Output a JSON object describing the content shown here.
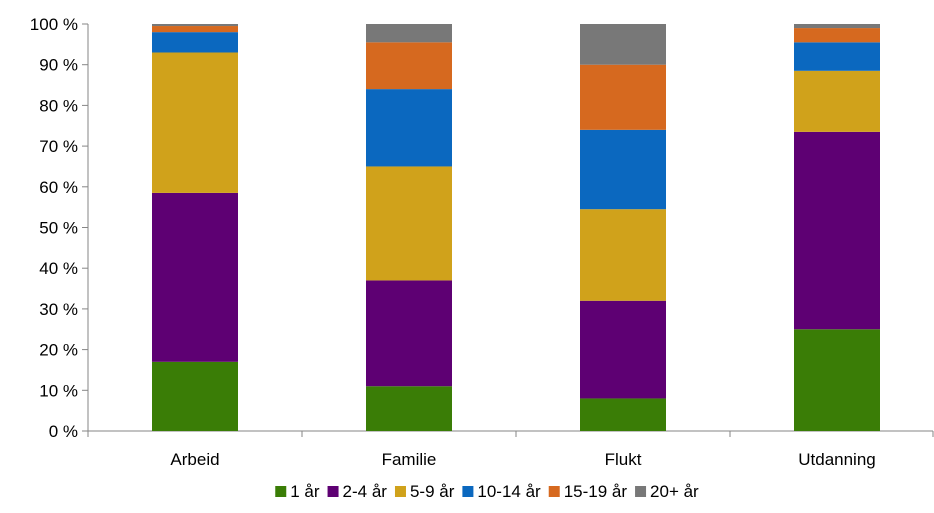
{
  "chart_data": {
    "type": "bar",
    "stacked": true,
    "percent": true,
    "categories": [
      "Arbeid",
      "Familie",
      "Flukt",
      "Utdanning"
    ],
    "series": [
      {
        "name": "1 år",
        "color": "#3a7d06",
        "values": [
          17,
          11,
          8,
          25
        ]
      },
      {
        "name": "2-4 år",
        "color": "#5e0073",
        "values": [
          41.5,
          26,
          24,
          48.5
        ]
      },
      {
        "name": "5-9 år",
        "color": "#d0a21b",
        "values": [
          34.5,
          28,
          22.5,
          15
        ]
      },
      {
        "name": "10-14 år",
        "color": "#0b68bf",
        "values": [
          5,
          19,
          19.5,
          7
        ]
      },
      {
        "name": "15-19 år",
        "color": "#d6691f",
        "values": [
          1.5,
          11.5,
          16,
          3.5
        ]
      },
      {
        "name": "20+ år",
        "color": "#787878",
        "values": [
          0.5,
          4.5,
          10,
          1
        ]
      }
    ],
    "yticks": [
      "0 %",
      "10 %",
      "20 %",
      "30 %",
      "40 %",
      "50 %",
      "60 %",
      "70 %",
      "80 %",
      "90 %",
      "100 %"
    ],
    "ylim": [
      0,
      100
    ],
    "grid": false,
    "legend_position": "bottom"
  }
}
